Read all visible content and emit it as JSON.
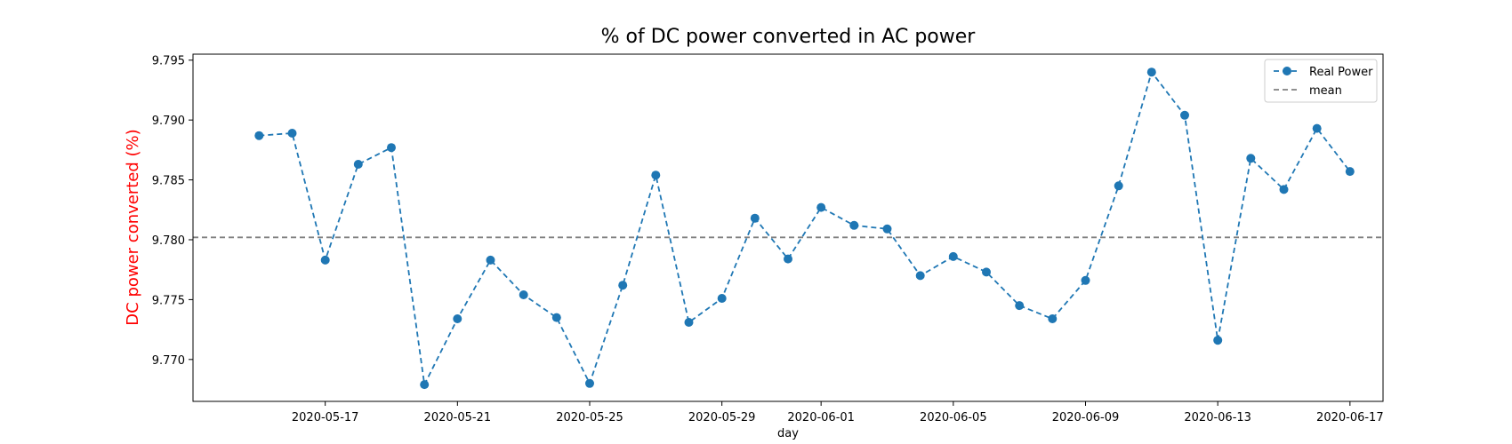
{
  "chart_data": {
    "type": "line",
    "title": "% of DC power converted in AC power",
    "xlabel": "day",
    "ylabel": "DC power converted (%)",
    "ylabel_color": "#ff0000",
    "x_range": [
      "2020-05-13",
      "2020-06-18"
    ],
    "ylim": [
      9.7665,
      9.7955
    ],
    "x_ticks": [
      "2020-05-17",
      "2020-05-21",
      "2020-05-25",
      "2020-05-29",
      "2020-06-01",
      "2020-06-05",
      "2020-06-09",
      "2020-06-13",
      "2020-06-17"
    ],
    "y_ticks": [
      "9.770",
      "9.775",
      "9.780",
      "9.785",
      "9.790",
      "9.795"
    ],
    "grid": false,
    "legend_position": "top-right",
    "series": [
      {
        "name": "Real Power",
        "color": "#1f77b4",
        "line_style": "dashed",
        "marker": "circle",
        "x": [
          "2020-05-15",
          "2020-05-16",
          "2020-05-17",
          "2020-05-18",
          "2020-05-19",
          "2020-05-20",
          "2020-05-21",
          "2020-05-22",
          "2020-05-23",
          "2020-05-24",
          "2020-05-25",
          "2020-05-26",
          "2020-05-27",
          "2020-05-28",
          "2020-05-29",
          "2020-05-30",
          "2020-05-31",
          "2020-06-01",
          "2020-06-02",
          "2020-06-03",
          "2020-06-04",
          "2020-06-05",
          "2020-06-06",
          "2020-06-07",
          "2020-06-08",
          "2020-06-09",
          "2020-06-10",
          "2020-06-11",
          "2020-06-12",
          "2020-06-13",
          "2020-06-14",
          "2020-06-15",
          "2020-06-16",
          "2020-06-17"
        ],
        "values": [
          9.7887,
          9.7889,
          9.7783,
          9.7863,
          9.7877,
          9.7679,
          9.7734,
          9.7783,
          9.7754,
          9.7735,
          9.768,
          9.7762,
          9.7854,
          9.7731,
          9.7751,
          9.7818,
          9.7784,
          9.7827,
          9.7812,
          9.7809,
          9.777,
          9.7786,
          9.7773,
          9.7745,
          9.7734,
          9.7766,
          9.7845,
          9.794,
          9.7904,
          9.7716,
          9.7868,
          9.7842,
          9.7893,
          9.7857
        ]
      },
      {
        "name": "mean",
        "color": "#808080",
        "line_style": "dashed",
        "marker": "none",
        "value": 9.7802
      }
    ]
  }
}
